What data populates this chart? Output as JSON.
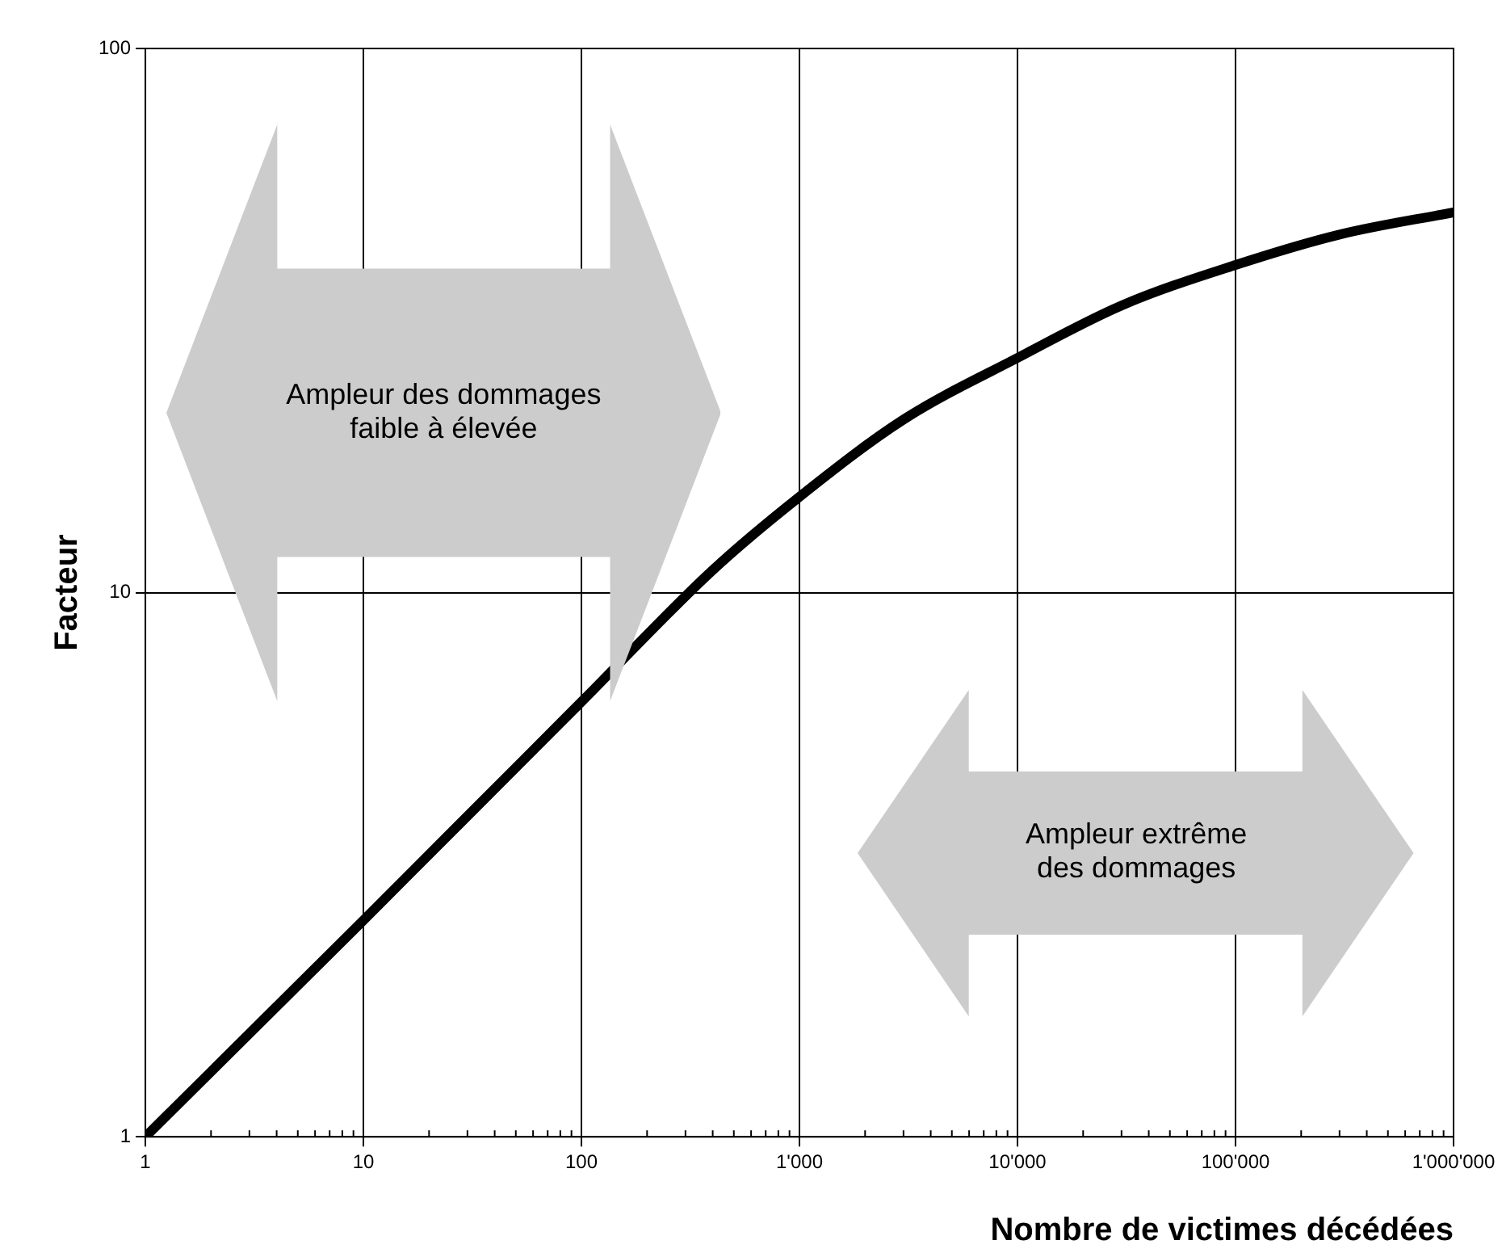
{
  "chart_data": {
    "type": "line",
    "xlabel": "Nombre de victimes décédées",
    "ylabel": "Facteur",
    "x": [
      1,
      10,
      100,
      400,
      1000,
      3000,
      10000,
      30000,
      100000,
      300000,
      1000000
    ],
    "series": [
      {
        "color": "#000000",
        "values": [
          1,
          2.5,
          6.3,
          11,
          15,
          20.8,
          27,
          33.7,
          40,
          45.5,
          50
        ]
      }
    ],
    "xlim": [
      1,
      1000000
    ],
    "ylim": [
      1,
      100
    ],
    "xticks": [
      1,
      10,
      100,
      {
        "value": 1000,
        "label": "1'000"
      },
      {
        "value": 10000,
        "label": "10'000"
      },
      {
        "value": 100000,
        "label": "100'000"
      },
      {
        "value": 1000000,
        "label": "1'000'000"
      }
    ],
    "yticks": [
      1,
      10,
      100
    ],
    "log": "xy",
    "grid": true,
    "legend": false,
    "marker": "none",
    "line_style": "solid",
    "annotations": [
      "Ampleur des dommages\nfaible à élevée",
      "Ampleur extrême\ndes dommages"
    ]
  }
}
